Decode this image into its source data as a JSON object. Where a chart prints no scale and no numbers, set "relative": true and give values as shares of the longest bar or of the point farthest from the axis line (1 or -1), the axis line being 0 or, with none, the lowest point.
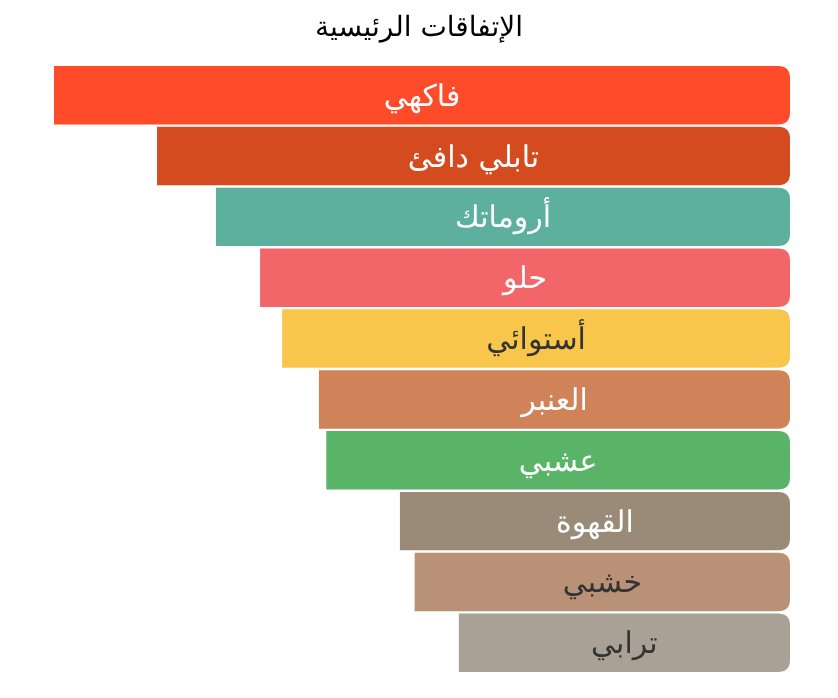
{
  "chart_data": {
    "type": "bar",
    "orientation": "horizontal",
    "relative": true,
    "title": "الإتفاقات الرئيسية",
    "categories": [
      "فاكهي",
      "تابلي دافئ",
      "أروماتك",
      "حلو",
      "أستوائي",
      "العنبر",
      "عشبي",
      "القهوة",
      "خشبي",
      "ترابي"
    ],
    "values": [
      1.0,
      0.86,
      0.78,
      0.72,
      0.69,
      0.64,
      0.63,
      0.53,
      0.51,
      0.45
    ],
    "colors": [
      "#fe4b29",
      "#d44b1f",
      "#5cb09d",
      "#f2666a",
      "#f8c64b",
      "#d08259",
      "#5ab467",
      "#9a8a78",
      "#b89177",
      "#a9a196"
    ]
  }
}
